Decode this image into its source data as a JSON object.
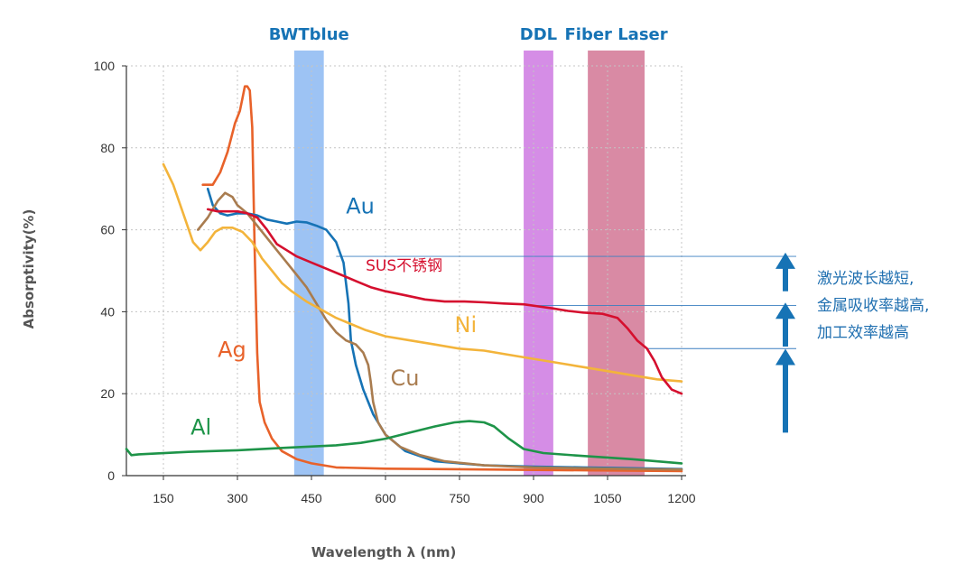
{
  "chart_data": {
    "type": "line",
    "xlabel": "Wavelength λ (nm)",
    "ylabel": "Absorptivity(%)",
    "xlim": [
      75,
      1200
    ],
    "ylim": [
      0,
      100
    ],
    "x_ticks": [
      150,
      300,
      450,
      600,
      750,
      900,
      1050,
      1200
    ],
    "y_ticks": [
      0,
      20,
      40,
      60,
      80,
      100
    ],
    "grid": true,
    "bands": [
      {
        "name": "BWTblue",
        "from": 415,
        "to": 475,
        "color": "#9dc3f4",
        "label_color": "#1673b5"
      },
      {
        "name": "DDL",
        "from": 880,
        "to": 940,
        "color": "#d58de6",
        "label_color": "#1673b5"
      },
      {
        "name": "Fiber Laser",
        "from": 1010,
        "to": 1125,
        "color": "#d98aa4",
        "label_color": "#1673b5"
      }
    ],
    "series": [
      {
        "name": "Ag",
        "color": "#e8622a",
        "label_at": [
          260,
          29
        ],
        "points": [
          [
            230,
            71
          ],
          [
            250,
            71
          ],
          [
            265,
            74
          ],
          [
            280,
            79
          ],
          [
            295,
            86
          ],
          [
            305,
            89
          ],
          [
            310,
            92
          ],
          [
            315,
            95
          ],
          [
            320,
            95
          ],
          [
            325,
            94
          ],
          [
            330,
            85
          ],
          [
            335,
            55
          ],
          [
            340,
            30
          ],
          [
            345,
            18
          ],
          [
            355,
            13
          ],
          [
            370,
            9
          ],
          [
            390,
            6
          ],
          [
            420,
            4
          ],
          [
            450,
            3
          ],
          [
            500,
            2
          ],
          [
            600,
            1.7
          ],
          [
            800,
            1.5
          ],
          [
            1000,
            1.3
          ],
          [
            1200,
            1.1
          ]
        ]
      },
      {
        "name": "Au",
        "color": "#1673b5",
        "label_at": [
          520,
          64
        ],
        "points": [
          [
            240,
            70
          ],
          [
            250,
            66
          ],
          [
            265,
            64
          ],
          [
            280,
            63.5
          ],
          [
            300,
            64
          ],
          [
            320,
            64
          ],
          [
            340,
            63.5
          ],
          [
            360,
            62.5
          ],
          [
            380,
            62
          ],
          [
            400,
            61.5
          ],
          [
            420,
            62
          ],
          [
            440,
            61.8
          ],
          [
            460,
            61
          ],
          [
            480,
            60
          ],
          [
            500,
            57
          ],
          [
            515,
            52
          ],
          [
            525,
            42
          ],
          [
            530,
            33
          ],
          [
            540,
            27
          ],
          [
            555,
            21
          ],
          [
            575,
            15
          ],
          [
            600,
            10
          ],
          [
            640,
            6
          ],
          [
            700,
            3.5
          ],
          [
            800,
            2.5
          ],
          [
            900,
            2.2
          ],
          [
            1000,
            2.0
          ],
          [
            1100,
            1.8
          ],
          [
            1200,
            1.6
          ]
        ]
      },
      {
        "name": "Cu",
        "color": "#a97c4f",
        "label_at": [
          610,
          22
        ],
        "points": [
          [
            220,
            60
          ],
          [
            240,
            63
          ],
          [
            260,
            67
          ],
          [
            275,
            69
          ],
          [
            290,
            68
          ],
          [
            300,
            66
          ],
          [
            320,
            64
          ],
          [
            340,
            61
          ],
          [
            360,
            58
          ],
          [
            380,
            55
          ],
          [
            400,
            52
          ],
          [
            420,
            49
          ],
          [
            440,
            46
          ],
          [
            460,
            42
          ],
          [
            480,
            38
          ],
          [
            500,
            35
          ],
          [
            520,
            33
          ],
          [
            540,
            32
          ],
          [
            555,
            30
          ],
          [
            565,
            27
          ],
          [
            570,
            23
          ],
          [
            575,
            18
          ],
          [
            585,
            13
          ],
          [
            600,
            10
          ],
          [
            630,
            7
          ],
          [
            670,
            5
          ],
          [
            720,
            3.5
          ],
          [
            800,
            2.5
          ],
          [
            900,
            2.0
          ],
          [
            1000,
            1.8
          ],
          [
            1100,
            1.6
          ],
          [
            1200,
            1.5
          ]
        ]
      },
      {
        "name": "Ni",
        "color": "#f3b43b",
        "label_at": [
          740,
          35
        ],
        "points": [
          [
            150,
            76
          ],
          [
            170,
            71
          ],
          [
            190,
            64
          ],
          [
            210,
            57
          ],
          [
            225,
            55
          ],
          [
            240,
            57
          ],
          [
            255,
            59.5
          ],
          [
            270,
            60.5
          ],
          [
            290,
            60.5
          ],
          [
            310,
            59.5
          ],
          [
            330,
            57
          ],
          [
            350,
            53
          ],
          [
            370,
            50
          ],
          [
            390,
            47
          ],
          [
            410,
            45
          ],
          [
            440,
            42.5
          ],
          [
            470,
            40.5
          ],
          [
            500,
            38.5
          ],
          [
            530,
            37
          ],
          [
            560,
            35.5
          ],
          [
            600,
            34
          ],
          [
            650,
            33
          ],
          [
            700,
            32
          ],
          [
            750,
            31
          ],
          [
            800,
            30.5
          ],
          [
            850,
            29.5
          ],
          [
            900,
            28.5
          ],
          [
            950,
            27.5
          ],
          [
            1000,
            26.5
          ],
          [
            1050,
            25.5
          ],
          [
            1100,
            24.5
          ],
          [
            1150,
            23.5
          ],
          [
            1200,
            23
          ]
        ]
      },
      {
        "name": "SUS不锈钢",
        "color": "#d50f2e",
        "label_at": [
          560,
          50
        ],
        "points": [
          [
            240,
            65
          ],
          [
            260,
            64.5
          ],
          [
            280,
            64.5
          ],
          [
            300,
            64.5
          ],
          [
            320,
            64
          ],
          [
            340,
            63
          ],
          [
            360,
            60
          ],
          [
            380,
            56.5
          ],
          [
            400,
            55
          ],
          [
            420,
            53.5
          ],
          [
            450,
            52
          ],
          [
            480,
            50.5
          ],
          [
            510,
            49
          ],
          [
            540,
            47.5
          ],
          [
            570,
            46
          ],
          [
            600,
            45
          ],
          [
            640,
            44
          ],
          [
            680,
            43
          ],
          [
            720,
            42.5
          ],
          [
            760,
            42.5
          ],
          [
            800,
            42.3
          ],
          [
            840,
            42
          ],
          [
            880,
            41.8
          ],
          [
            910,
            41.3
          ],
          [
            940,
            40.8
          ],
          [
            970,
            40.2
          ],
          [
            1000,
            39.8
          ],
          [
            1040,
            39.5
          ],
          [
            1070,
            38.5
          ],
          [
            1090,
            36
          ],
          [
            1110,
            33
          ],
          [
            1130,
            31
          ],
          [
            1145,
            28
          ],
          [
            1160,
            24
          ],
          [
            1180,
            21
          ],
          [
            1200,
            20
          ]
        ]
      },
      {
        "name": "Al",
        "color": "#1e9449",
        "label_at": [
          205,
          10
        ],
        "points": [
          [
            75,
            6.5
          ],
          [
            85,
            5
          ],
          [
            100,
            5.2
          ],
          [
            200,
            5.8
          ],
          [
            300,
            6.2
          ],
          [
            400,
            6.8
          ],
          [
            500,
            7.4
          ],
          [
            550,
            8
          ],
          [
            600,
            9
          ],
          [
            650,
            10.5
          ],
          [
            700,
            12
          ],
          [
            740,
            13
          ],
          [
            770,
            13.3
          ],
          [
            800,
            13
          ],
          [
            820,
            12
          ],
          [
            850,
            9
          ],
          [
            880,
            6.5
          ],
          [
            920,
            5.5
          ],
          [
            1000,
            4.8
          ],
          [
            1100,
            4
          ],
          [
            1200,
            3
          ]
        ]
      }
    ],
    "reference_lines": [
      {
        "y": 53.5,
        "x_from": 500
      },
      {
        "y": 41.5,
        "x_from": 905
      },
      {
        "y": 31,
        "x_from": 1130
      }
    ],
    "arrows": [
      {
        "y_from": 45,
        "y_to": 54
      },
      {
        "y_from": 31.5,
        "y_to": 41.8
      },
      {
        "y_from": 10.5,
        "y_to": 30.5
      }
    ],
    "annotation_lines": [
      "激光波长越短,",
      "金属吸收率越高,",
      "加工效率越高"
    ]
  }
}
